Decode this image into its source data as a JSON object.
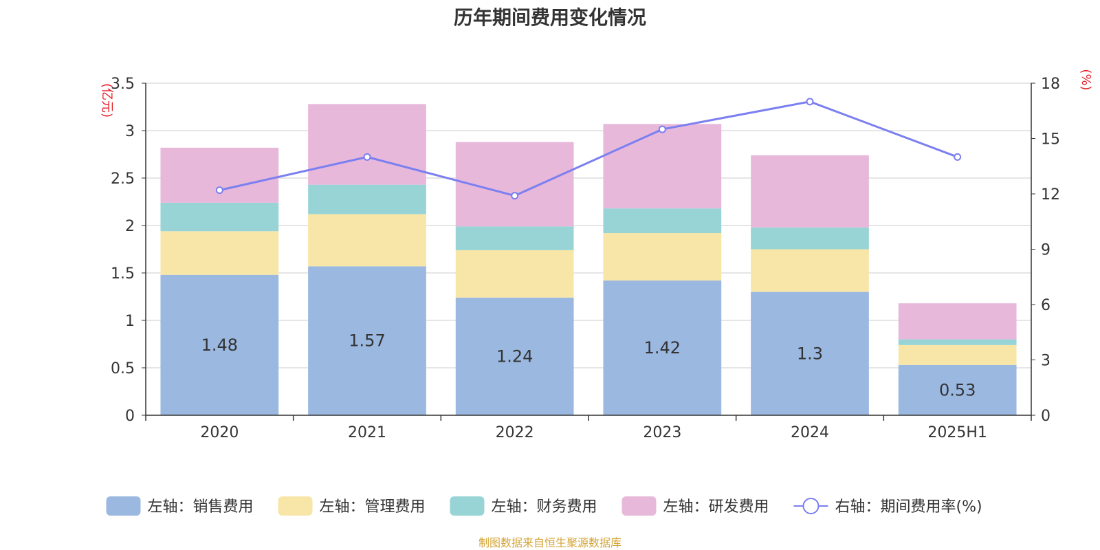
{
  "chart_data": {
    "type": "bar",
    "title": "历年期间费用变化情况",
    "categories": [
      "2020",
      "2021",
      "2022",
      "2023",
      "2024",
      "2025H1"
    ],
    "y_left": {
      "unit_label": "(亿元)",
      "ylim": [
        0,
        3.5
      ],
      "ticks": [
        "0",
        "0.5",
        "1",
        "1.5",
        "2",
        "2.5",
        "3",
        "3.5"
      ],
      "tick_values": [
        0,
        0.5,
        1,
        1.5,
        2,
        2.5,
        3,
        3.5
      ]
    },
    "y_right": {
      "unit_label": "(%)",
      "ylim": [
        0,
        18
      ],
      "ticks": [
        "0",
        "3",
        "6",
        "9",
        "12",
        "15",
        "18"
      ],
      "tick_values": [
        0,
        3,
        6,
        9,
        12,
        15,
        18
      ]
    },
    "stacked": true,
    "grid": true,
    "legend_position": "bottom",
    "series": [
      {
        "name": "左轴：销售费用",
        "axis": "left",
        "type": "bar",
        "color": "#9bb8e1",
        "values": [
          1.48,
          1.57,
          1.24,
          1.42,
          1.3,
          0.53
        ],
        "data_labels": [
          "1.48",
          "1.57",
          "1.24",
          "1.42",
          "1.3",
          "0.53"
        ]
      },
      {
        "name": "左轴：管理费用",
        "axis": "left",
        "type": "bar",
        "color": "#f7e6a8",
        "values": [
          0.46,
          0.55,
          0.5,
          0.5,
          0.45,
          0.21
        ]
      },
      {
        "name": "左轴：财务费用",
        "axis": "left",
        "type": "bar",
        "color": "#98d4d6",
        "values": [
          0.3,
          0.31,
          0.25,
          0.26,
          0.23,
          0.06
        ]
      },
      {
        "name": "左轴：研发费用",
        "axis": "left",
        "type": "bar",
        "color": "#e7b8da",
        "values": [
          0.58,
          0.85,
          0.89,
          0.89,
          0.76,
          0.38
        ]
      },
      {
        "name": "右轴：期间费用率(%)",
        "axis": "right",
        "type": "line",
        "color": "#7b7ff0",
        "values": [
          12.2,
          14.0,
          11.9,
          15.5,
          17.0,
          14.0
        ]
      }
    ],
    "source": "制图数据来自恒生聚源数据库"
  },
  "colors": {
    "axis_unit_label": "#e8212a",
    "source_text": "#d4a537",
    "text": "#333333",
    "grid": "#cccccc",
    "axis_line": "#333333"
  }
}
